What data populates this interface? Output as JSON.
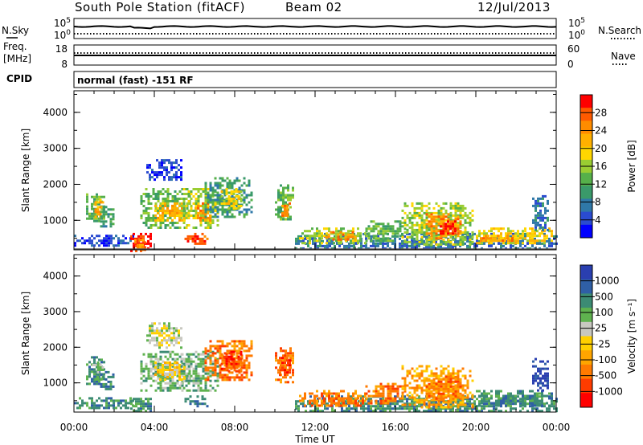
{
  "header": {
    "station": "South Pole Station (fitACF)",
    "beam": "Beam 02",
    "date": "12/Jul/2013"
  },
  "top_panels": {
    "nsky_label": "N.Sky",
    "nsearch_label": "N.Search",
    "nsky_ticks": [
      "10^5",
      "10^0"
    ],
    "nsearch_ticks": [
      "10^5",
      "10^0"
    ],
    "freq_label_1": "Freq.",
    "freq_label_2": "[MHz]",
    "freq_ticks": [
      "18",
      "8"
    ],
    "nave_label": "Nave",
    "nave_ticks": [
      "60",
      "0"
    ],
    "cpid_label": "CPID",
    "cpid_text": "normal (fast) -151 RF"
  },
  "chart_data": [
    {
      "type": "heatmap",
      "name": "power",
      "xlabel": "",
      "ylabel": "Slant Range [km]",
      "x_ticks": [],
      "y_ticks": [
        "1000",
        "2000",
        "3000",
        "4000"
      ],
      "colorbar": {
        "label": "Power [dB]",
        "ticks": [
          "4",
          "8",
          "12",
          "16",
          "20",
          "24",
          "28"
        ],
        "colors": [
          "#0000ff",
          "#2a4bd0",
          "#2f78a8",
          "#3a9a6a",
          "#56b04a",
          "#9acd32",
          "#ffd700",
          "#ffb000",
          "#ff8c00",
          "#ff5a00",
          "#ff0000"
        ]
      },
      "xlim": [
        "00:00",
        "24:00"
      ],
      "ylim": [
        180,
        4600
      ],
      "blobs": [
        {
          "t0": 0.0,
          "t1": 3.0,
          "r0": 300,
          "r1": 600,
          "c": 1
        },
        {
          "t0": 0.6,
          "t1": 1.5,
          "r0": 950,
          "r1": 1750,
          "c": 4
        },
        {
          "t0": 0.9,
          "t1": 1.4,
          "r0": 1100,
          "r1": 1600,
          "c": 7
        },
        {
          "t0": 1.3,
          "t1": 2.0,
          "r0": 800,
          "r1": 1400,
          "c": 3
        },
        {
          "t0": 2.8,
          "t1": 3.8,
          "r0": 180,
          "r1": 650,
          "c": 10
        },
        {
          "t0": 3.0,
          "t1": 3.6,
          "r0": 200,
          "r1": 550,
          "c": 8
        },
        {
          "t0": 3.6,
          "t1": 5.3,
          "r0": 2100,
          "r1": 2700,
          "c": 1
        },
        {
          "t0": 3.3,
          "t1": 5.8,
          "r0": 800,
          "r1": 1900,
          "c": 4
        },
        {
          "t0": 4.0,
          "t1": 5.5,
          "r0": 1000,
          "r1": 1500,
          "c": 7
        },
        {
          "t0": 5.5,
          "t1": 6.6,
          "r0": 350,
          "r1": 650,
          "c": 9
        },
        {
          "t0": 5.3,
          "t1": 7.2,
          "r0": 800,
          "r1": 1900,
          "c": 5
        },
        {
          "t0": 6.0,
          "t1": 6.8,
          "r0": 1000,
          "r1": 1500,
          "c": 8
        },
        {
          "t0": 6.5,
          "t1": 8.8,
          "r0": 1100,
          "r1": 2200,
          "c": 3
        },
        {
          "t0": 7.3,
          "t1": 8.3,
          "r0": 1300,
          "r1": 1900,
          "c": 6
        },
        {
          "t0": 10.0,
          "t1": 10.9,
          "r0": 1000,
          "r1": 2000,
          "c": 4
        },
        {
          "t0": 10.2,
          "t1": 10.7,
          "r0": 1100,
          "r1": 1500,
          "c": 8
        },
        {
          "t0": 11.0,
          "t1": 24.0,
          "r0": 200,
          "r1": 650,
          "c": 2
        },
        {
          "t0": 11.2,
          "t1": 14.5,
          "r0": 350,
          "r1": 800,
          "c": 5
        },
        {
          "t0": 12.5,
          "t1": 14.0,
          "r0": 450,
          "r1": 700,
          "c": 8
        },
        {
          "t0": 14.5,
          "t1": 16.5,
          "r0": 400,
          "r1": 1000,
          "c": 4
        },
        {
          "t0": 16.3,
          "t1": 19.8,
          "r0": 300,
          "r1": 1500,
          "c": 5
        },
        {
          "t0": 17.5,
          "t1": 19.3,
          "r0": 500,
          "r1": 1200,
          "c": 8
        },
        {
          "t0": 18.2,
          "t1": 19.0,
          "r0": 600,
          "r1": 1000,
          "c": 10
        },
        {
          "t0": 20.0,
          "t1": 23.8,
          "r0": 350,
          "r1": 800,
          "c": 6
        },
        {
          "t0": 20.2,
          "t1": 22.0,
          "r0": 400,
          "r1": 600,
          "c": 8
        },
        {
          "t0": 22.8,
          "t1": 23.6,
          "r0": 700,
          "r1": 1700,
          "c": 2
        }
      ]
    },
    {
      "type": "heatmap",
      "name": "velocity",
      "xlabel": "Time UT",
      "ylabel": "Slant Range [km]",
      "x_ticks": [
        "00:00",
        "04:00",
        "08:00",
        "12:00",
        "16:00",
        "20:00",
        "00:00"
      ],
      "y_ticks": [
        "1000",
        "2000",
        "3000",
        "4000"
      ],
      "colorbar": {
        "label": "Velocity [m s⁻¹]",
        "ticks": [
          "1000",
          "500",
          "100",
          "25",
          "-25",
          "-100",
          "-500",
          "-1000"
        ],
        "colors": [
          "#2a3fb0",
          "#2f5fa6",
          "#3c8b74",
          "#5fb24f",
          "#c8c8c0",
          "#ffd000",
          "#ffa500",
          "#ff7a00",
          "#ff3c00",
          "#ff0000"
        ]
      },
      "xlim": [
        "00:00",
        "24:00"
      ],
      "ylim": [
        180,
        4600
      ],
      "blobs": [
        {
          "t0": 0.0,
          "t1": 3.0,
          "r0": 300,
          "r1": 600,
          "c": 2
        },
        {
          "t0": 0.6,
          "t1": 1.5,
          "r0": 950,
          "r1": 1750,
          "c": 2
        },
        {
          "t0": 0.9,
          "t1": 1.4,
          "r0": 1100,
          "r1": 1600,
          "c": 3
        },
        {
          "t0": 1.3,
          "t1": 2.0,
          "r0": 800,
          "r1": 1400,
          "c": 2
        },
        {
          "t0": 2.8,
          "t1": 3.8,
          "r0": 180,
          "r1": 650,
          "c": 2
        },
        {
          "t0": 3.6,
          "t1": 5.3,
          "r0": 2000,
          "r1": 2700,
          "c": 4
        },
        {
          "t0": 3.3,
          "t1": 5.8,
          "r0": 800,
          "r1": 1900,
          "c": 3
        },
        {
          "t0": 4.0,
          "t1": 5.5,
          "r0": 1100,
          "r1": 1600,
          "c": 5
        },
        {
          "t0": 5.5,
          "t1": 6.6,
          "r0": 350,
          "r1": 650,
          "c": 2
        },
        {
          "t0": 5.3,
          "t1": 7.2,
          "r0": 800,
          "r1": 1900,
          "c": 3
        },
        {
          "t0": 6.5,
          "t1": 8.8,
          "r0": 1100,
          "r1": 2200,
          "c": 7
        },
        {
          "t0": 7.3,
          "t1": 8.3,
          "r0": 1300,
          "r1": 1900,
          "c": 8
        },
        {
          "t0": 10.0,
          "t1": 10.9,
          "r0": 1000,
          "r1": 2000,
          "c": 7
        },
        {
          "t0": 10.2,
          "t1": 10.7,
          "r0": 1200,
          "r1": 1800,
          "c": 8
        },
        {
          "t0": 11.0,
          "t1": 24.0,
          "r0": 200,
          "r1": 650,
          "c": 2
        },
        {
          "t0": 11.2,
          "t1": 14.5,
          "r0": 350,
          "r1": 800,
          "c": 7
        },
        {
          "t0": 14.5,
          "t1": 16.5,
          "r0": 400,
          "r1": 1000,
          "c": 7
        },
        {
          "t0": 16.3,
          "t1": 19.8,
          "r0": 300,
          "r1": 1500,
          "c": 6
        },
        {
          "t0": 17.5,
          "t1": 19.3,
          "r0": 500,
          "r1": 1200,
          "c": 7
        },
        {
          "t0": 20.0,
          "t1": 23.8,
          "r0": 350,
          "r1": 800,
          "c": 2
        },
        {
          "t0": 22.8,
          "t1": 23.6,
          "r0": 700,
          "r1": 1700,
          "c": 0
        }
      ]
    }
  ]
}
